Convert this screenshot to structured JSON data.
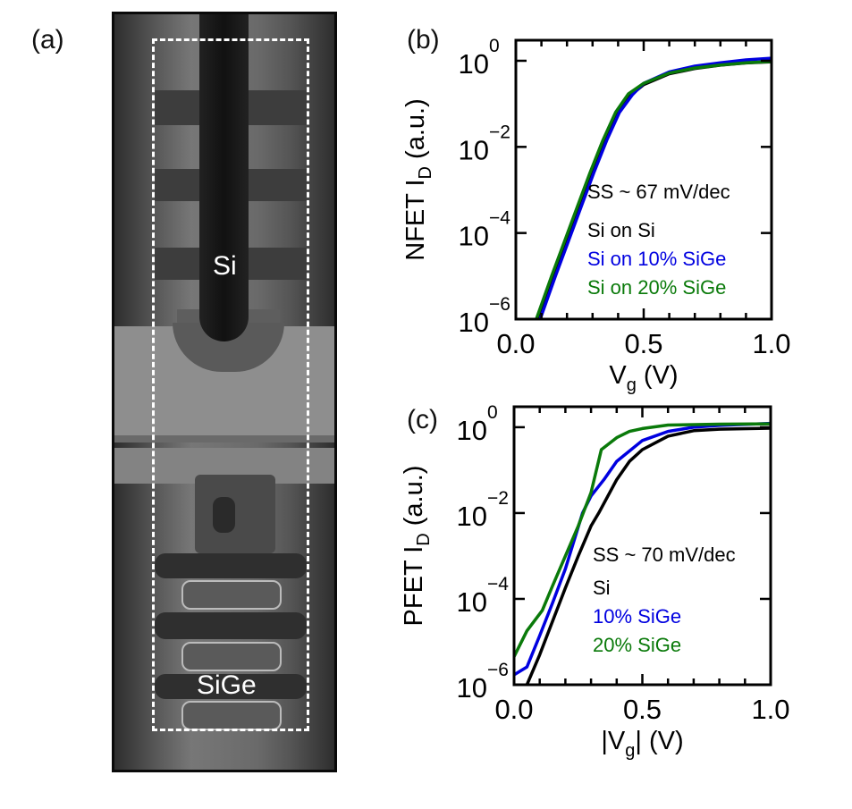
{
  "figure": {
    "panel_a": {
      "label": "(a)",
      "region_labels": [
        "Si",
        "SiGe"
      ]
    },
    "panel_b_label": "(b)",
    "panel_c_label": "(c)"
  },
  "chart_data": [
    {
      "type": "line",
      "panel": "(b)",
      "ylabel": "NFET I_D (a.u.)",
      "ylabel_main": "NFET I",
      "ylabel_sub": "D",
      "ylabel_tail": " (a.u.)",
      "xlabel_main": "V",
      "xlabel_sub": "g",
      "xlabel_tail": " (V)",
      "xlabel_prefix": "",
      "xlim": [
        0,
        1.0
      ],
      "ylim": [
        1e-06,
        3
      ],
      "yscale": "log",
      "xticks": [
        "0.0",
        "0.5",
        "1.0"
      ],
      "yticks_exp": [
        "0",
        "−2",
        "−4",
        "−6"
      ],
      "ytick_base": "10",
      "annotation": "SS ~ 67 mV/dec",
      "legend": [
        "Si on Si",
        "Si on 10% SiGe",
        "Si on 20% SiGe"
      ],
      "series": [
        {
          "name": "Si on Si",
          "color": "#000000",
          "x": [
            0.09,
            0.15,
            0.2,
            0.25,
            0.3,
            0.35,
            0.4,
            0.45,
            0.5,
            0.6,
            0.7,
            0.8,
            0.9,
            1.0
          ],
          "y": [
            1e-06,
            1e-05,
            6.3e-05,
            0.0004,
            0.0025,
            0.014,
            0.063,
            0.16,
            0.28,
            0.5,
            0.66,
            0.79,
            0.89,
            0.95
          ]
        },
        {
          "name": "Si on 10% SiGe",
          "color": "#0000e0",
          "x": [
            0.095,
            0.155,
            0.205,
            0.255,
            0.305,
            0.355,
            0.405,
            0.455,
            0.5,
            0.6,
            0.7,
            0.8,
            0.9,
            1.0
          ],
          "y": [
            1e-06,
            1e-05,
            6.3e-05,
            0.0004,
            0.0025,
            0.014,
            0.063,
            0.16,
            0.3,
            0.55,
            0.75,
            0.9,
            1.05,
            1.15
          ]
        },
        {
          "name": "Si on 20% SiGe",
          "color": "#0a7a0a",
          "x": [
            0.08,
            0.14,
            0.19,
            0.24,
            0.29,
            0.34,
            0.39,
            0.44,
            0.5,
            0.6,
            0.7,
            0.8,
            0.9,
            1.0
          ],
          "y": [
            1e-06,
            1e-05,
            6.3e-05,
            0.0004,
            0.0025,
            0.014,
            0.063,
            0.17,
            0.3,
            0.52,
            0.68,
            0.8,
            0.9,
            0.96
          ]
        }
      ]
    },
    {
      "type": "line",
      "panel": "(c)",
      "ylabel": "PFET I_D (a.u.)",
      "ylabel_main": "PFET I",
      "ylabel_sub": "D",
      "ylabel_tail": " (a.u.)",
      "xlabel_prefix": "|",
      "xlabel_main": "V",
      "xlabel_sub": "g",
      "xlabel_tail": "| (V)",
      "xlim": [
        0,
        1.0
      ],
      "ylim": [
        1e-06,
        3
      ],
      "yscale": "log",
      "xticks": [
        "0.0",
        "0.5",
        "1.0"
      ],
      "yticks_exp": [
        "0",
        "−2",
        "−4",
        "−6"
      ],
      "ytick_base": "10",
      "annotation": "SS ~ 70 mV/dec",
      "legend": [
        "Si",
        "10% SiGe",
        "20% SiGe"
      ],
      "series": [
        {
          "name": "Si",
          "color": "#000000",
          "x": [
            0.05,
            0.1,
            0.15,
            0.2,
            0.25,
            0.3,
            0.33,
            0.4,
            0.45,
            0.5,
            0.6,
            0.7,
            0.8,
            1.0
          ],
          "y": [
            1e-06,
            5e-06,
            3e-05,
            0.00018,
            0.001,
            0.005,
            0.01,
            0.06,
            0.16,
            0.3,
            0.62,
            0.83,
            0.9,
            0.95
          ]
        },
        {
          "name": "10% SiGe",
          "color": "#0000e0",
          "x": [
            0,
            0.05,
            0.1,
            0.15,
            0.2,
            0.267,
            0.3,
            0.35,
            0.4,
            0.5,
            0.6,
            0.7,
            0.8,
            1.0
          ],
          "y": [
            1.7e-06,
            2.6e-06,
            1.4e-05,
            8e-05,
            0.0005,
            0.01,
            0.025,
            0.06,
            0.16,
            0.49,
            0.8,
            1.0,
            1.1,
            1.23
          ]
        },
        {
          "name": "20% SiGe",
          "color": "#0a7a0a",
          "x": [
            0,
            0.05,
            0.11,
            0.15,
            0.2,
            0.25,
            0.3,
            0.34,
            0.4,
            0.45,
            0.5,
            0.6,
            0.8,
            1.0
          ],
          "y": [
            4.5e-06,
            1.8e-05,
            5.4e-05,
            0.0002,
            0.001,
            0.005,
            0.03,
            0.3,
            0.57,
            0.8,
            0.93,
            1.12,
            1.18,
            1.2
          ]
        }
      ]
    }
  ]
}
